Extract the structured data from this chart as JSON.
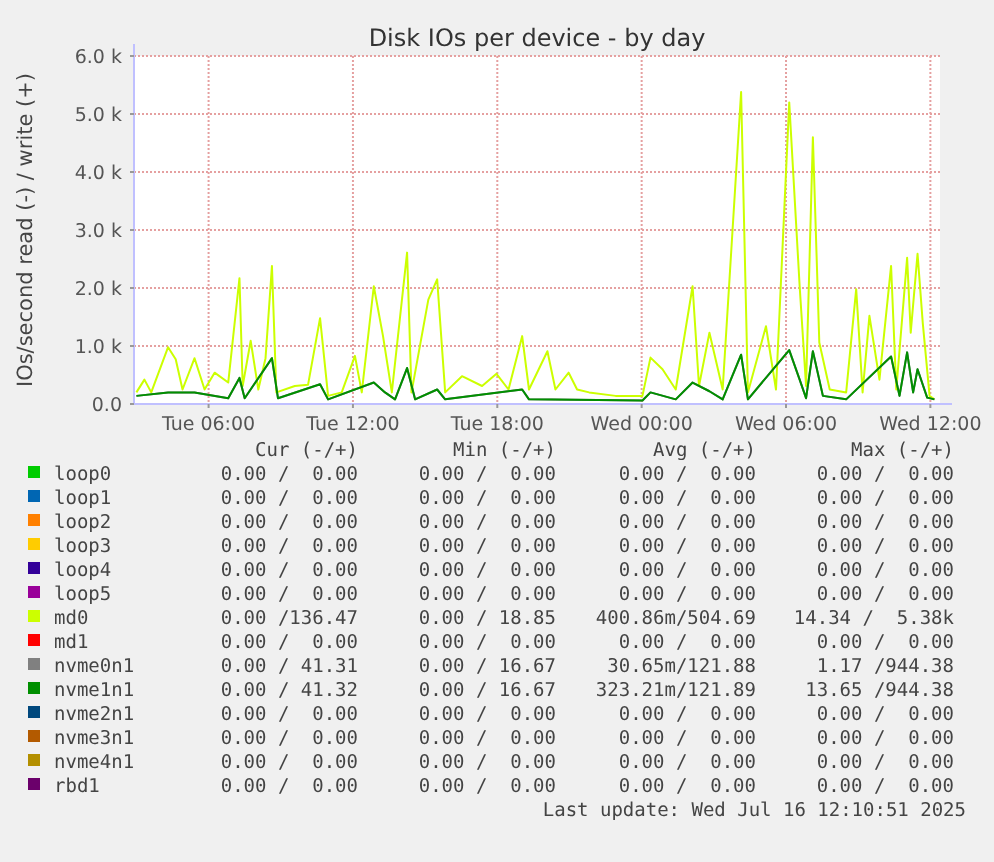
{
  "chart_data": {
    "type": "line",
    "title": "Disk IOs per device - by day",
    "ylabel": "IOs/second read (-) / write (+)",
    "xlim": [
      "2025-07-15T02:54",
      "2025-07-16T12:24"
    ],
    "xticks": [
      {
        "value": "2025-07-15T06:00",
        "label": "Tue 06:00"
      },
      {
        "value": "2025-07-15T12:00",
        "label": "Tue 12:00"
      },
      {
        "value": "2025-07-15T18:00",
        "label": "Tue 18:00"
      },
      {
        "value": "2025-07-16T00:00",
        "label": "Wed 00:00"
      },
      {
        "value": "2025-07-16T06:00",
        "label": "Wed 06:00"
      },
      {
        "value": "2025-07-16T12:00",
        "label": "Wed 12:00"
      }
    ],
    "ylim": [
      0,
      6000
    ],
    "yticks": [
      {
        "value": 0,
        "label": "0.0"
      },
      {
        "value": 1000,
        "label": "1.0 k"
      },
      {
        "value": 2000,
        "label": "2.0 k"
      },
      {
        "value": 3000,
        "label": "3.0 k"
      },
      {
        "value": 4000,
        "label": "4.0 k"
      },
      {
        "value": 5000,
        "label": "5.0 k"
      },
      {
        "value": 6000,
        "label": "6.0 k"
      }
    ],
    "grid": true,
    "legend": "bottom",
    "series": [
      {
        "name": "loop0",
        "color": "#00cc00"
      },
      {
        "name": "loop1",
        "color": "#0066b3"
      },
      {
        "name": "loop2",
        "color": "#ff8000"
      },
      {
        "name": "loop3",
        "color": "#ffcc00"
      },
      {
        "name": "loop4",
        "color": "#330099"
      },
      {
        "name": "loop5",
        "color": "#990099"
      },
      {
        "name": "md0",
        "color": "#ccff00",
        "x": [
          "2025-07-15T03:00",
          "2025-07-15T03:20",
          "2025-07-15T03:37",
          "2025-07-15T04:19",
          "2025-07-15T04:38",
          "2025-07-15T04:55",
          "2025-07-15T05:25",
          "2025-07-15T05:50",
          "2025-07-15T06:15",
          "2025-07-15T06:49",
          "2025-07-15T07:17",
          "2025-07-15T07:25",
          "2025-07-15T07:45",
          "2025-07-15T08:04",
          "2025-07-15T08:22",
          "2025-07-15T08:38",
          "2025-07-15T08:49",
          "2025-07-15T09:35",
          "2025-07-15T10:08",
          "2025-07-15T10:38",
          "2025-07-15T10:58",
          "2025-07-15T11:32",
          "2025-07-15T12:05",
          "2025-07-15T12:22",
          "2025-07-15T12:52",
          "2025-07-15T13:15",
          "2025-07-15T13:37",
          "2025-07-15T14:15",
          "2025-07-15T14:26",
          "2025-07-15T15:08",
          "2025-07-15T15:30",
          "2025-07-15T15:50",
          "2025-07-15T16:32",
          "2025-07-15T17:22",
          "2025-07-15T17:58",
          "2025-07-15T18:28",
          "2025-07-15T19:02",
          "2025-07-15T19:19",
          "2025-07-15T20:05",
          "2025-07-15T20:25",
          "2025-07-15T20:58",
          "2025-07-15T21:19",
          "2025-07-15T21:49",
          "2025-07-15T22:55",
          "2025-07-16T00:02",
          "2025-07-16T00:22",
          "2025-07-16T00:52",
          "2025-07-16T01:25",
          "2025-07-16T02:07",
          "2025-07-16T02:23",
          "2025-07-16T02:49",
          "2025-07-16T03:22",
          "2025-07-16T04:08",
          "2025-07-16T04:25",
          "2025-07-16T05:10",
          "2025-07-16T05:35",
          "2025-07-16T06:08",
          "2025-07-16T06:34",
          "2025-07-16T06:50",
          "2025-07-16T07:07",
          "2025-07-16T07:23",
          "2025-07-16T07:49",
          "2025-07-16T08:30",
          "2025-07-16T08:55",
          "2025-07-16T09:11",
          "2025-07-16T09:28",
          "2025-07-16T09:53",
          "2025-07-16T10:22",
          "2025-07-16T10:35",
          "2025-07-16T11:02",
          "2025-07-16T11:11",
          "2025-07-16T11:28",
          "2025-07-16T11:41",
          "2025-07-16T11:58",
          "2025-07-16T12:10"
        ],
        "values": [
          200,
          420,
          200,
          980,
          770,
          250,
          790,
          250,
          540,
          370,
          2170,
          310,
          1090,
          250,
          790,
          2380,
          200,
          310,
          330,
          1480,
          140,
          200,
          830,
          200,
          2030,
          1170,
          200,
          2610,
          200,
          1800,
          2150,
          200,
          480,
          310,
          520,
          250,
          1170,
          250,
          910,
          250,
          540,
          250,
          200,
          140,
          140,
          800,
          600,
          250,
          2030,
          310,
          1230,
          250,
          5380,
          200,
          1340,
          250,
          5200,
          2030,
          310,
          4600,
          1060,
          250,
          200,
          1980,
          200,
          1520,
          420,
          2380,
          250,
          2520,
          1230,
          2590,
          1400,
          140,
          80
        ]
      },
      {
        "name": "md1",
        "color": "#ff0000"
      },
      {
        "name": "nvme0n1",
        "color": "#808080",
        "x": [
          "2025-07-15T03:00",
          "2025-07-15T04:19",
          "2025-07-15T05:25",
          "2025-07-15T06:49",
          "2025-07-15T07:17",
          "2025-07-15T07:30",
          "2025-07-15T08:38",
          "2025-07-15T08:53",
          "2025-07-15T10:38",
          "2025-07-15T10:58",
          "2025-07-15T12:52",
          "2025-07-15T13:20",
          "2025-07-15T13:45",
          "2025-07-15T14:15",
          "2025-07-15T14:35",
          "2025-07-15T15:30",
          "2025-07-15T15:50",
          "2025-07-15T19:02",
          "2025-07-15T19:19",
          "2025-07-16T00:02",
          "2025-07-16T00:22",
          "2025-07-16T01:25",
          "2025-07-16T02:07",
          "2025-07-16T02:49",
          "2025-07-16T03:22",
          "2025-07-16T04:08",
          "2025-07-16T04:25",
          "2025-07-16T06:08",
          "2025-07-16T06:34",
          "2025-07-16T06:50",
          "2025-07-16T07:07",
          "2025-07-16T07:32",
          "2025-07-16T08:30",
          "2025-07-16T10:22",
          "2025-07-16T10:43",
          "2025-07-16T11:02",
          "2025-07-16T11:17",
          "2025-07-16T11:28",
          "2025-07-16T11:52",
          "2025-07-16T12:10"
        ],
        "values": [
          140,
          200,
          200,
          100,
          450,
          100,
          790,
          100,
          340,
          80,
          370,
          200,
          80,
          620,
          80,
          250,
          80,
          250,
          80,
          60,
          200,
          80,
          370,
          220,
          80,
          850,
          80,
          930,
          420,
          100,
          910,
          140,
          80,
          820,
          140,
          890,
          200,
          600,
          110,
          80
        ]
      },
      {
        "name": "nvme1n1",
        "color": "#008f00",
        "x": [
          "2025-07-15T03:00",
          "2025-07-15T04:19",
          "2025-07-15T05:25",
          "2025-07-15T06:49",
          "2025-07-15T07:17",
          "2025-07-15T07:30",
          "2025-07-15T08:38",
          "2025-07-15T08:53",
          "2025-07-15T10:38",
          "2025-07-15T10:58",
          "2025-07-15T12:52",
          "2025-07-15T13:20",
          "2025-07-15T13:45",
          "2025-07-15T14:15",
          "2025-07-15T14:35",
          "2025-07-15T15:30",
          "2025-07-15T15:50",
          "2025-07-15T19:02",
          "2025-07-15T19:19",
          "2025-07-16T00:02",
          "2025-07-16T00:22",
          "2025-07-16T01:25",
          "2025-07-16T02:07",
          "2025-07-16T02:49",
          "2025-07-16T03:22",
          "2025-07-16T04:08",
          "2025-07-16T04:25",
          "2025-07-16T06:08",
          "2025-07-16T06:34",
          "2025-07-16T06:50",
          "2025-07-16T07:07",
          "2025-07-16T07:32",
          "2025-07-16T08:30",
          "2025-07-16T10:22",
          "2025-07-16T10:43",
          "2025-07-16T11:02",
          "2025-07-16T11:17",
          "2025-07-16T11:28",
          "2025-07-16T11:52",
          "2025-07-16T12:10"
        ],
        "values": [
          140,
          200,
          200,
          100,
          450,
          100,
          790,
          100,
          340,
          80,
          370,
          200,
          80,
          620,
          80,
          250,
          80,
          250,
          80,
          60,
          200,
          80,
          370,
          220,
          80,
          850,
          80,
          930,
          420,
          100,
          910,
          140,
          80,
          820,
          140,
          890,
          200,
          600,
          110,
          80
        ]
      },
      {
        "name": "nvme2n1",
        "color": "#00487d"
      },
      {
        "name": "nvme3n1",
        "color": "#b35a00"
      },
      {
        "name": "nvme4n1",
        "color": "#b38f00"
      },
      {
        "name": "rbd1",
        "color": "#6b006b"
      }
    ],
    "annotations": [
      "Cur (-/+)",
      "Min (-/+)",
      "Avg (-/+)",
      "Max (-/+)",
      "0.00 /  0.00",
      "0.00 /  0.00",
      "0.00 /  0.00",
      "0.00 /  0.00",
      "0.00 /  0.00",
      "0.00 /  0.00",
      "0.00 /  0.00",
      "0.00 /  0.00",
      "0.00 /  0.00",
      "0.00 /  0.00",
      "0.00 /  0.00",
      "0.00 /  0.00",
      "0.00 /  0.00",
      "0.00 /  0.00",
      "0.00 /  0.00",
      "0.00 /  0.00",
      "0.00 /  0.00",
      "0.00 /  0.00",
      "0.00 /  0.00",
      "0.00 /  0.00",
      "0.00 /  0.00",
      "0.00 /  0.00",
      "0.00 /  0.00",
      "0.00 /  0.00",
      "0.00 /136.47",
      "0.00 / 18.85",
      "400.86m/504.69",
      "14.34 /  5.38k",
      "0.00 /  0.00",
      "0.00 /  0.00",
      "0.00 /  0.00",
      "0.00 /  0.00",
      "0.00 / 41.31",
      "0.00 / 16.67",
      "30.65m/121.88",
      "1.17 /944.38",
      "0.00 / 41.32",
      "0.00 / 16.67",
      "323.21m/121.89",
      "13.65 /944.38",
      "0.00 /  0.00",
      "0.00 /  0.00",
      "0.00 /  0.00",
      "0.00 /  0.00",
      "0.00 /  0.00",
      "0.00 /  0.00",
      "0.00 /  0.00",
      "0.00 /  0.00",
      "0.00 /  0.00",
      "0.00 /  0.00",
      "0.00 /  0.00",
      "0.00 /  0.00",
      "0.00 /  0.00",
      "0.00 /  0.00",
      "0.00 /  0.00",
      "0.00 /  0.00",
      "Last update: Wed Jul 16 12:10:51 2025"
    ]
  }
}
